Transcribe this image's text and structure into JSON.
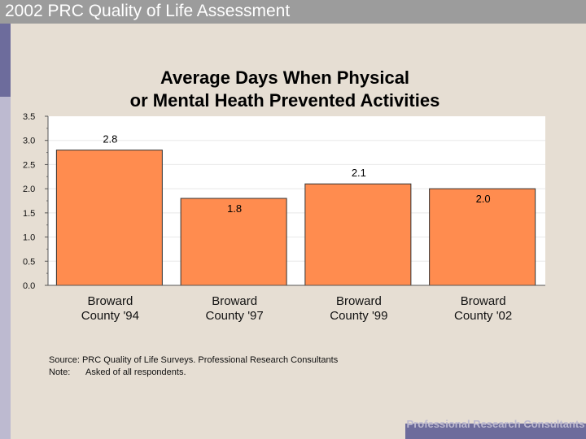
{
  "header": {
    "title": "2002 PRC Quality of Life Assessment"
  },
  "chart_data": {
    "type": "bar",
    "title_lines": [
      "Average Days When Physical",
      "or Mental Heath Prevented Activities"
    ],
    "categories": [
      [
        "Broward",
        "County '94"
      ],
      [
        "Broward",
        "County '97"
      ],
      [
        "Broward",
        "County '99"
      ],
      [
        "Broward",
        "County '02"
      ]
    ],
    "values": [
      2.8,
      1.8,
      2.1,
      2.0
    ],
    "value_labels": [
      "2.8",
      "1.8",
      "2.1",
      "2.0"
    ],
    "yticks": [
      "0.0",
      "0.5",
      "1.0",
      "1.5",
      "2.0",
      "2.5",
      "3.0",
      "3.5"
    ],
    "ylim": [
      0,
      3.5
    ],
    "xlabel": "",
    "ylabel": "",
    "grid": true,
    "bar_color": "#ff8c4f"
  },
  "footnote": {
    "source": "Source: PRC Quality of Life Surveys. Professional Research Consultants",
    "note_label": "Note:",
    "note_text": "Asked of all respondents."
  },
  "footer": {
    "brand": "Professional Research Consultants"
  }
}
